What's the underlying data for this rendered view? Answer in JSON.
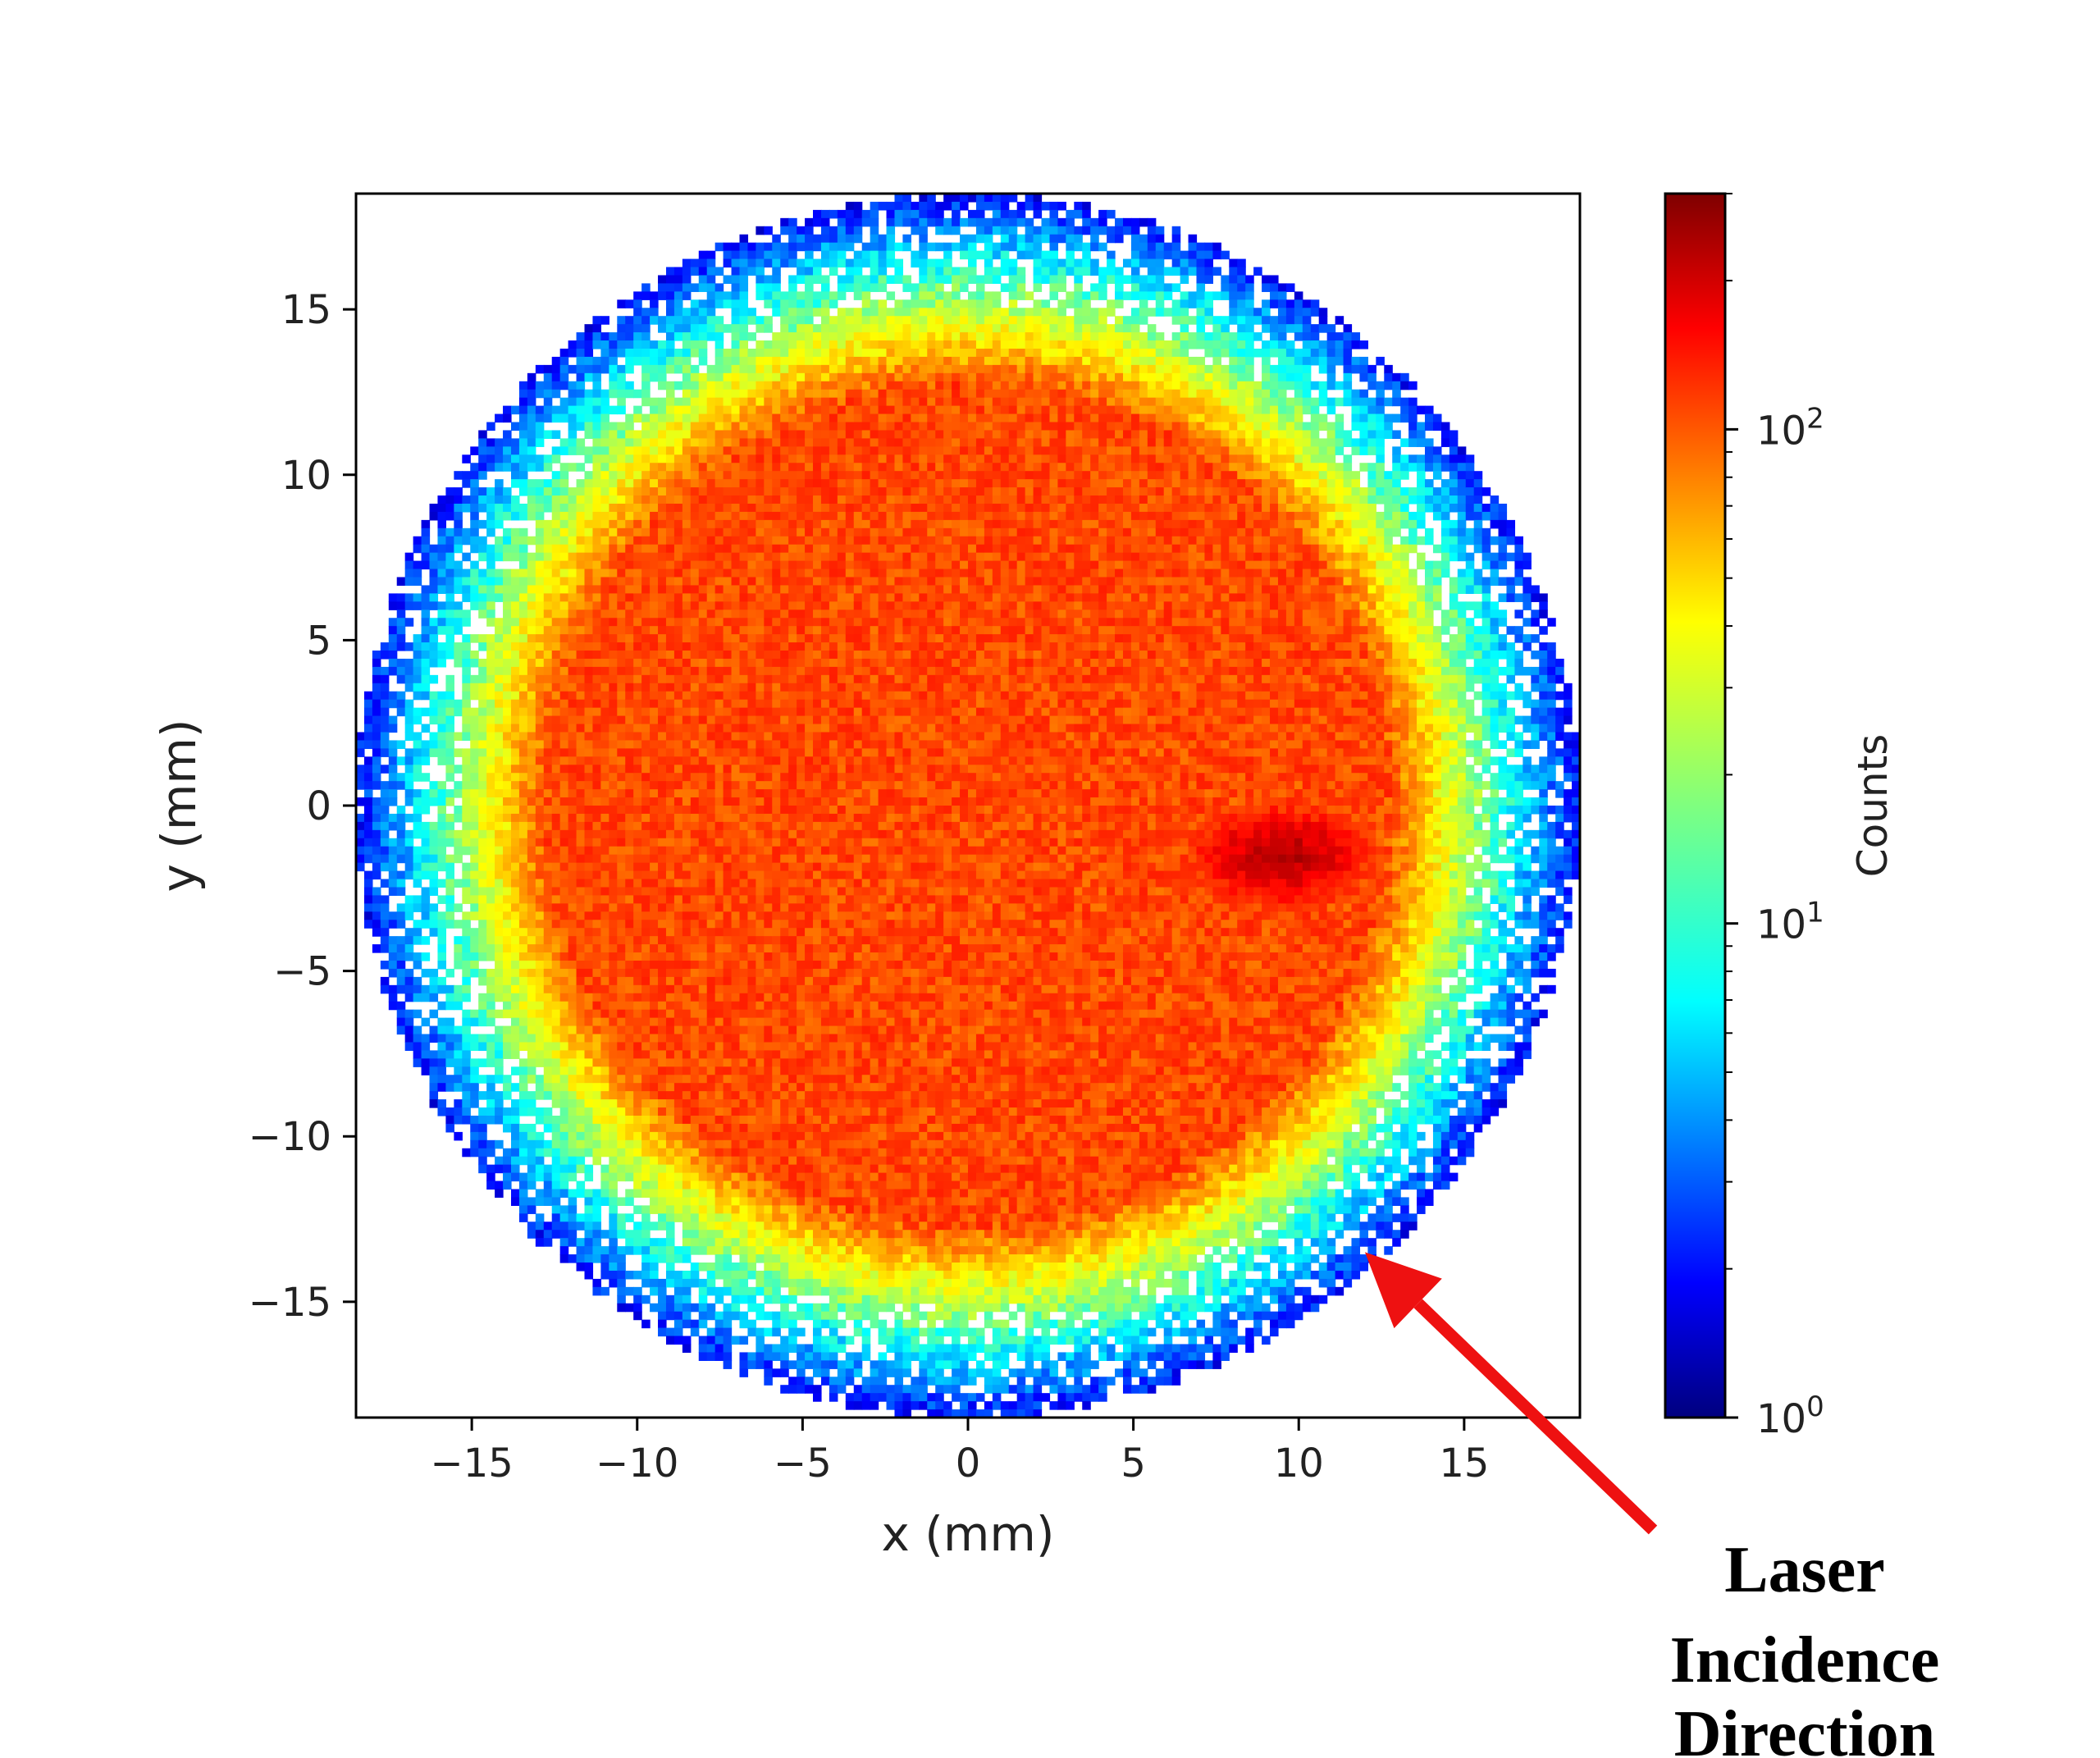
{
  "chart_data": {
    "type": "heatmap",
    "title": "",
    "xlabel": "x (mm)",
    "ylabel": "y (mm)",
    "xlim": [
      -18.5,
      18.5
    ],
    "ylim": [
      -18.5,
      18.5
    ],
    "x_ticks": [
      -15,
      -10,
      -5,
      0,
      5,
      10,
      15
    ],
    "y_ticks": [
      15,
      10,
      5,
      0,
      -5,
      -10,
      -15
    ],
    "x_tick_labels": [
      "−15",
      "−10",
      "−5",
      "0",
      "5",
      "10",
      "15"
    ],
    "y_tick_labels": [
      "15",
      "10",
      "5",
      "0",
      "−5",
      "−10",
      "−15"
    ],
    "grid": false,
    "colormap": "jet",
    "colorbar": {
      "label": "Counts",
      "scale": "log",
      "range": [
        1,
        300
      ],
      "ticks": [
        1,
        10,
        100
      ],
      "tick_labels": [
        "10^0",
        "10^1",
        "10^2"
      ]
    },
    "distribution": {
      "shape": "disk",
      "center": [
        0,
        0
      ],
      "plateau_radius_mm": 15.2,
      "outer_radius_mm": 18.5,
      "plateau_counts": 100,
      "rim_counts": 3,
      "hotspot_center_mm": [
        9.5,
        -1.5
      ],
      "hotspot_counts": 280
    },
    "annotations": [
      {
        "lines": [
          "Laser",
          "Incidence",
          "Direction"
        ],
        "arrow_tip_data": [
          12,
          -13.5
        ],
        "color": "#ee1111"
      }
    ]
  }
}
